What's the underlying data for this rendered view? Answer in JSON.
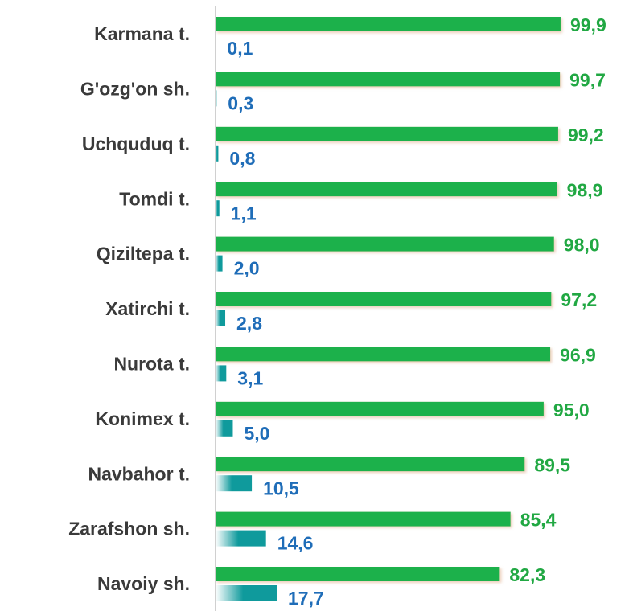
{
  "chart_data": {
    "type": "barh",
    "categories": [
      "Karmana t.",
      "G'ozg'on sh.",
      "Uchquduq t.",
      "Tomdi t.",
      "Qiziltepa t.",
      "Xatirchi t.",
      "Nurota t.",
      "Konimex t.",
      "Navbahor t.",
      "Zarafshon sh.",
      "Navoiy sh."
    ],
    "xlim": [
      0,
      100
    ],
    "series": [
      {
        "color": "#1fb14c",
        "label_color": "#21a843",
        "values": [
          99.9,
          99.7,
          99.2,
          98.9,
          98.0,
          97.2,
          96.9,
          95.0,
          89.5,
          85.4,
          82.3
        ],
        "value_labels": [
          "99,9",
          "99,7",
          "99,2",
          "98,9",
          "98,0",
          "97,2",
          "96,9",
          "95,0",
          "89,5",
          "85,4",
          "82,3"
        ]
      },
      {
        "color": "#0f9a9c",
        "label_color": "#1f6db8",
        "values": [
          0.1,
          0.3,
          0.8,
          1.1,
          2.0,
          2.8,
          3.1,
          5.0,
          10.5,
          14.6,
          17.7
        ],
        "value_labels": [
          "0,1",
          "0,3",
          "0,8",
          "1,1",
          "2,0",
          "2,8",
          "3,1",
          "5,0",
          "10,5",
          "14,6",
          "17,7"
        ]
      }
    ]
  }
}
